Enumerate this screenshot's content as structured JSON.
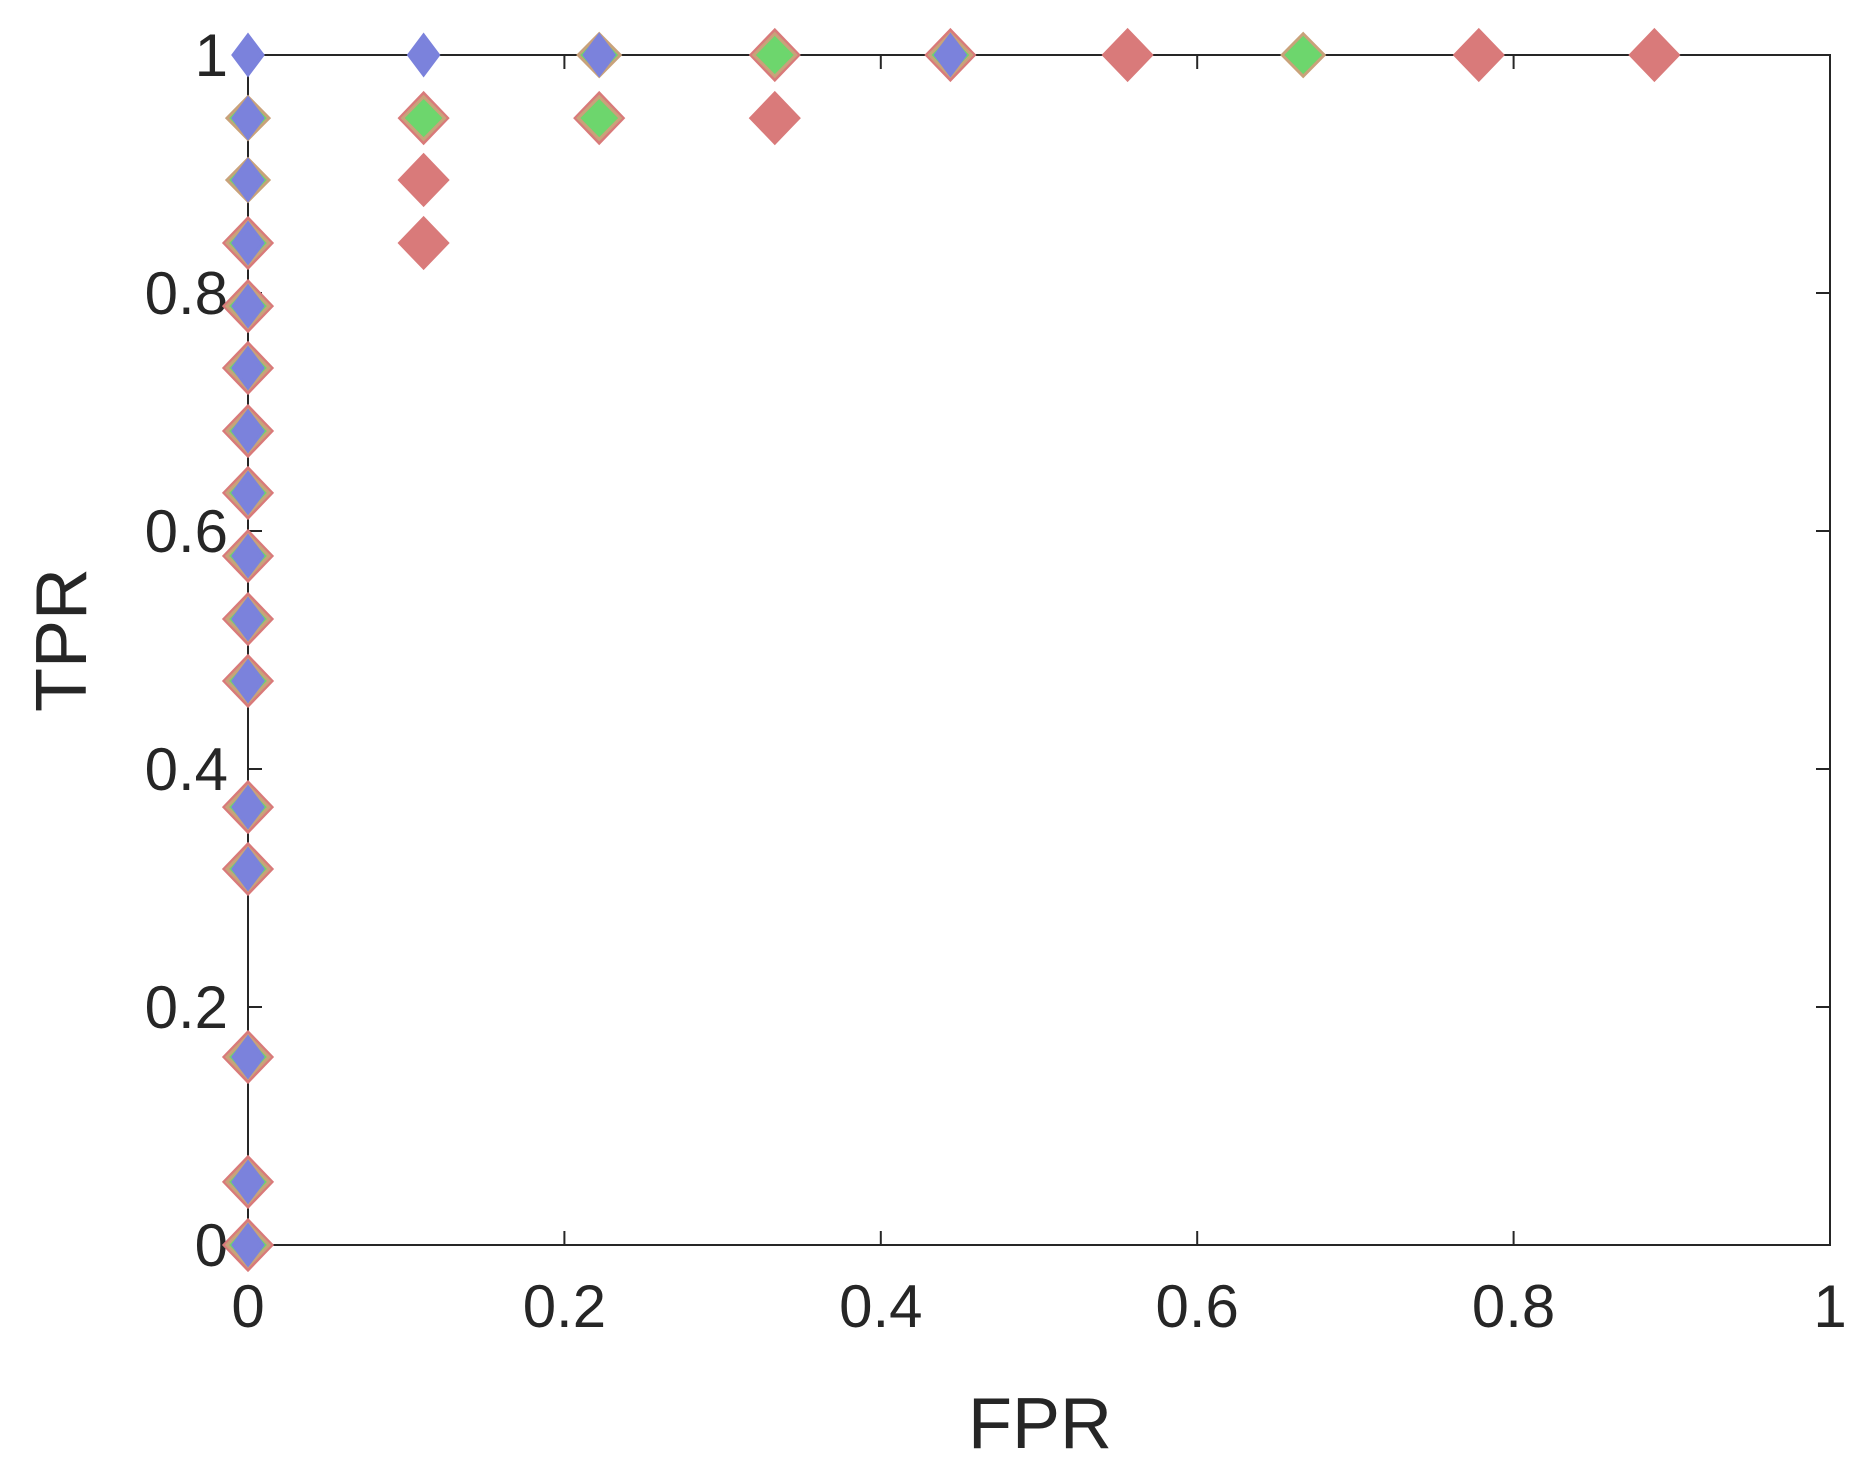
{
  "chart_data": {
    "type": "scatter",
    "title": "",
    "xlabel": "FPR",
    "ylabel": "TPR",
    "xlim": [
      0,
      1
    ],
    "ylim": [
      0,
      1
    ],
    "xticks": [
      0,
      0.2,
      0.4,
      0.6,
      0.8,
      1
    ],
    "yticks": [
      0,
      0.2,
      0.4,
      0.6,
      0.8,
      1
    ],
    "xtick_labels": [
      "0",
      "0.2",
      "0.4",
      "0.6",
      "0.8",
      "1"
    ],
    "ytick_labels": [
      "0",
      "0.2",
      "0.4",
      "0.6",
      "0.8",
      "1"
    ],
    "grid": false,
    "marker": "diamond",
    "series": [
      {
        "color": "#d97a7a",
        "edge_color": "#d97a7a",
        "marker_size": "large",
        "points": [
          [
            0,
            0
          ],
          [
            0,
            0.053
          ],
          [
            0,
            0.158
          ],
          [
            0,
            0.316
          ],
          [
            0,
            0.368
          ],
          [
            0,
            0.474
          ],
          [
            0,
            0.526
          ],
          [
            0,
            0.579
          ],
          [
            0,
            0.632
          ],
          [
            0,
            0.684
          ],
          [
            0,
            0.737
          ],
          [
            0,
            0.789
          ],
          [
            0,
            0.842
          ],
          [
            0.111,
            0.842
          ],
          [
            0.111,
            0.895
          ],
          [
            0.111,
            0.947
          ],
          [
            0.222,
            0.947
          ],
          [
            0.333,
            0.947
          ],
          [
            0.333,
            1
          ],
          [
            0.444,
            1
          ],
          [
            0.556,
            1
          ],
          [
            0.778,
            1
          ],
          [
            0.889,
            1
          ]
        ]
      },
      {
        "color": "#6dd66d",
        "edge_color": "#c9a27a",
        "marker_size": "medium",
        "points": [
          [
            0,
            0
          ],
          [
            0,
            0.053
          ],
          [
            0,
            0.158
          ],
          [
            0,
            0.316
          ],
          [
            0,
            0.368
          ],
          [
            0,
            0.474
          ],
          [
            0,
            0.526
          ],
          [
            0,
            0.579
          ],
          [
            0,
            0.632
          ],
          [
            0,
            0.684
          ],
          [
            0,
            0.737
          ],
          [
            0,
            0.789
          ],
          [
            0,
            0.842
          ],
          [
            0,
            0.895
          ],
          [
            0,
            0.947
          ],
          [
            0.111,
            0.947
          ],
          [
            0.222,
            0.947
          ],
          [
            0.222,
            1
          ],
          [
            0.333,
            1
          ],
          [
            0.444,
            1
          ],
          [
            0.667,
            1
          ]
        ]
      },
      {
        "color": "#7b82dc",
        "edge_color": "#7b82dc",
        "marker_size": "small",
        "points": [
          [
            0,
            0
          ],
          [
            0,
            0.053
          ],
          [
            0,
            0.158
          ],
          [
            0,
            0.316
          ],
          [
            0,
            0.368
          ],
          [
            0,
            0.474
          ],
          [
            0,
            0.526
          ],
          [
            0,
            0.579
          ],
          [
            0,
            0.632
          ],
          [
            0,
            0.684
          ],
          [
            0,
            0.737
          ],
          [
            0,
            0.789
          ],
          [
            0,
            0.842
          ],
          [
            0,
            0.895
          ],
          [
            0,
            0.947
          ],
          [
            0,
            1
          ],
          [
            0.111,
            1
          ],
          [
            0.222,
            1
          ],
          [
            0.444,
            1
          ]
        ]
      }
    ]
  }
}
